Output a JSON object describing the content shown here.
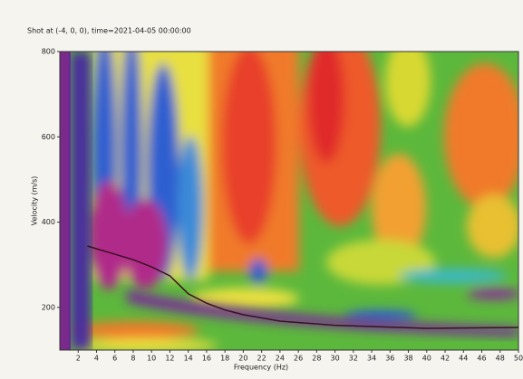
{
  "chart_data": {
    "type": "line",
    "title": "Shot at (-4, 0, 0), time=2021-04-05 00:00:00",
    "x_label": "Frequency (Hz)",
    "y_label": "Velocity (m/s)",
    "x": [
      3,
      8,
      10,
      12,
      14,
      16,
      18,
      20,
      24,
      30,
      40,
      50
    ],
    "series": [
      {
        "color": "#3a1020",
        "values": [
          344,
          312,
          295,
          274,
          232,
          210,
          194,
          183,
          168,
          158,
          151,
          153
        ]
      }
    ],
    "xlim": [
      0,
      50
    ],
    "xticks": [
      2,
      4,
      6,
      8,
      10,
      12,
      14,
      16,
      18,
      20,
      22,
      24,
      26,
      28,
      30,
      32,
      34,
      36,
      38,
      40,
      42,
      44,
      46,
      48,
      50
    ],
    "ylim": [
      100,
      800
    ],
    "yticks": [
      200,
      400,
      600,
      800
    ]
  }
}
